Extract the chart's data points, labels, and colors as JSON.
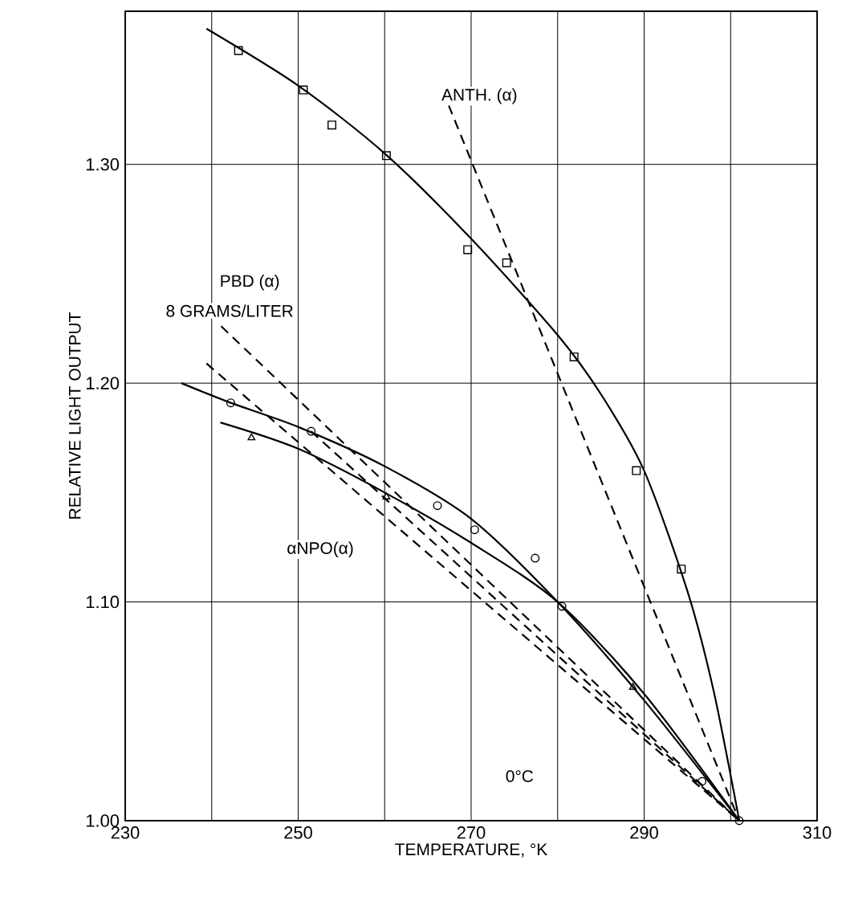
{
  "chart_data": {
    "type": "scatter",
    "xlabel": "TEMPERATURE, °K",
    "ylabel": "RELATIVE LIGHT OUTPUT",
    "xlim": [
      230,
      310
    ],
    "ylim": [
      1.0,
      1.37
    ],
    "xticks": [
      230,
      {
        "value": 240,
        "label": null
      },
      250,
      {
        "value": 260,
        "label": null
      },
      270,
      {
        "value": 280,
        "label": null
      },
      290,
      {
        "value": 300,
        "label": null
      },
      310
    ],
    "yticks": [
      {
        "value": 1.0,
        "label": "1.00"
      },
      {
        "value": 1.1,
        "label": "1.10"
      },
      {
        "value": 1.2,
        "label": "1.20"
      },
      {
        "value": 1.3,
        "label": "1.30"
      }
    ],
    "grid": true,
    "series": [
      {
        "marker": "square",
        "color": "#000000",
        "x": [
          243.1,
          250.6,
          253.9,
          260.2,
          269.6,
          274.1,
          281.9,
          289.1,
          294.3
        ],
        "values": [
          1.352,
          1.334,
          1.318,
          1.304,
          1.261,
          1.255,
          1.212,
          1.16,
          1.115
        ]
      },
      {
        "type": "line",
        "line_style": "solid",
        "color": "#000000",
        "x": [
          239.4,
          250,
          260,
          270,
          280,
          285,
          290,
          295,
          298,
          301
        ],
        "values": [
          1.362,
          1.336,
          1.305,
          1.266,
          1.222,
          1.195,
          1.16,
          1.105,
          1.06,
          1.0
        ]
      },
      {
        "type": "line",
        "line_style": "dashed",
        "color": "#000000",
        "x": [
          267.4,
          301
        ],
        "values": [
          1.327,
          1.0
        ]
      },
      {
        "marker": "circle",
        "color": "#000000",
        "x": [
          242.2,
          251.5,
          266.1,
          270.4,
          277.4,
          280.5,
          296.7,
          301
        ],
        "values": [
          1.191,
          1.178,
          1.144,
          1.133,
          1.12,
          1.098,
          1.018,
          1.0
        ]
      },
      {
        "type": "line",
        "line_style": "solid",
        "color": "#000000",
        "x": [
          236.5,
          242.2,
          250,
          260,
          270,
          280,
          290,
          301
        ],
        "values": [
          1.2,
          1.191,
          1.18,
          1.162,
          1.138,
          1.1,
          1.055,
          1.0
        ]
      },
      {
        "type": "line",
        "line_style": "dashed",
        "color": "#000000",
        "x": [
          241.1,
          301
        ],
        "values": [
          1.226,
          1.0
        ]
      },
      {
        "marker": "triangle",
        "color": "#000000",
        "x": [
          244.6,
          260.2,
          288.7
        ],
        "values": [
          1.175,
          1.148,
          1.061
        ]
      },
      {
        "type": "line",
        "line_style": "solid",
        "color": "#000000",
        "x": [
          241,
          250,
          260,
          270,
          280,
          290,
          301
        ],
        "values": [
          1.182,
          1.17,
          1.15,
          1.127,
          1.1,
          1.058,
          1.0
        ]
      },
      {
        "type": "line",
        "line_style": "dashed",
        "color": "#000000",
        "x": [
          239.4,
          301
        ],
        "values": [
          1.209,
          1.0
        ]
      },
      {
        "type": "line",
        "line_style": "dashed",
        "color": "#000000",
        "x": [
          251.5,
          301
        ],
        "values": [
          1.178,
          1.0
        ]
      }
    ],
    "annotations": [
      "ANTH. (α)",
      "PBD (α)",
      "8 GRAMS/LITER",
      "αNPO(α)",
      "0°C"
    ]
  }
}
